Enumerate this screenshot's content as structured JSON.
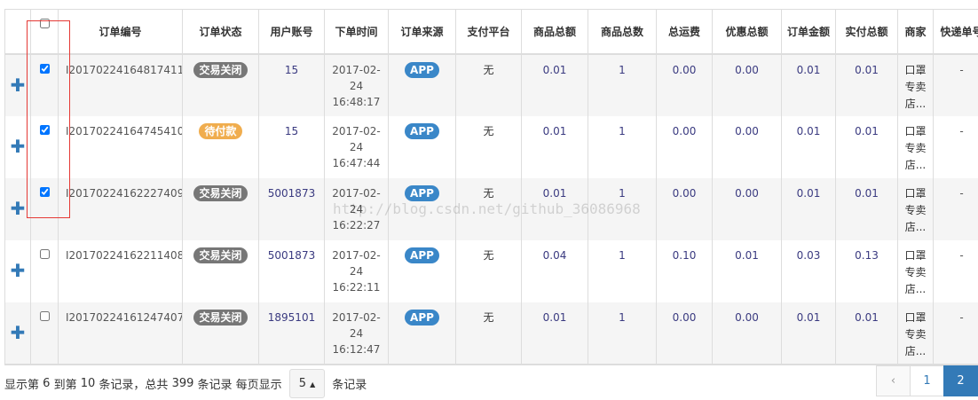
{
  "columns": [
    "",
    "",
    "订单编号",
    "订单状态",
    "用户账号",
    "下单时间",
    "订单来源",
    "支付平台",
    "商品总额",
    "商品总数",
    "总运费",
    "优惠总额",
    "订单金额",
    "实付总额",
    "商家",
    "快递单号"
  ],
  "rows": [
    {
      "checked": true,
      "id": "I20170224164817411",
      "status": "交易关闭",
      "status_color": "#777777",
      "user": "15",
      "date": "2017-02-",
      "date2": "24",
      "time": "16:48:17",
      "source": "APP",
      "pay": "无",
      "goods_total": "0.01",
      "goods_count": "1",
      "freight": "0.00",
      "discount": "0.00",
      "order_amount": "0.01",
      "paid": "0.01",
      "shop": [
        "口罩",
        "专卖",
        "店..."
      ],
      "express": "-"
    },
    {
      "checked": true,
      "id": "I20170224164745410",
      "status": "待付款",
      "status_color": "#f0ad4e",
      "user": "15",
      "date": "2017-02-",
      "date2": "24",
      "time": "16:47:44",
      "source": "APP",
      "pay": "无",
      "goods_total": "0.01",
      "goods_count": "1",
      "freight": "0.00",
      "discount": "0.00",
      "order_amount": "0.01",
      "paid": "0.01",
      "shop": [
        "口罩",
        "专卖",
        "店..."
      ],
      "express": "-"
    },
    {
      "checked": true,
      "id": "I20170224162227409",
      "status": "交易关闭",
      "status_color": "#777777",
      "user": "5001873",
      "date": "2017-02-",
      "date2": "24",
      "time": "16:22:27",
      "source": "APP",
      "pay": "无",
      "goods_total": "0.01",
      "goods_count": "1",
      "freight": "0.00",
      "discount": "0.00",
      "order_amount": "0.01",
      "paid": "0.01",
      "shop": [
        "口罩",
        "专卖",
        "店..."
      ],
      "express": "-"
    },
    {
      "checked": false,
      "id": "I20170224162211408",
      "status": "交易关闭",
      "status_color": "#777777",
      "user": "5001873",
      "date": "2017-02-",
      "date2": "24",
      "time": "16:22:11",
      "source": "APP",
      "pay": "无",
      "goods_total": "0.04",
      "goods_count": "1",
      "freight": "0.10",
      "discount": "0.01",
      "order_amount": "0.03",
      "paid": "0.13",
      "shop": [
        "口罩",
        "专卖",
        "店..."
      ],
      "express": "-"
    },
    {
      "checked": false,
      "id": "I20170224161247407",
      "status": "交易关闭",
      "status_color": "#777777",
      "user": "1895101",
      "date": "2017-02-",
      "date2": "24",
      "time": "16:12:47",
      "source": "APP",
      "pay": "无",
      "goods_total": "0.01",
      "goods_count": "1",
      "freight": "0.00",
      "discount": "0.00",
      "order_amount": "0.01",
      "paid": "0.01",
      "shop": [
        "口罩",
        "专卖",
        "店..."
      ],
      "express": "-"
    }
  ],
  "footer": {
    "t1": "显示第",
    "from": "6",
    "t2": "到第",
    "to": "10",
    "t3": "条记录，总共",
    "total": "399",
    "t4": "条记录 每页显示",
    "page_size": "5",
    "t5": "条记录"
  },
  "pager": {
    "prev": "‹",
    "pages": [
      "1",
      "2"
    ],
    "active": "2"
  },
  "watermark": "http://blog.csdn.net/github_36086968",
  "colors": {
    "accent": "#337ab7",
    "source_badge": "#3a87c8",
    "highlight_box": "#e53935"
  }
}
